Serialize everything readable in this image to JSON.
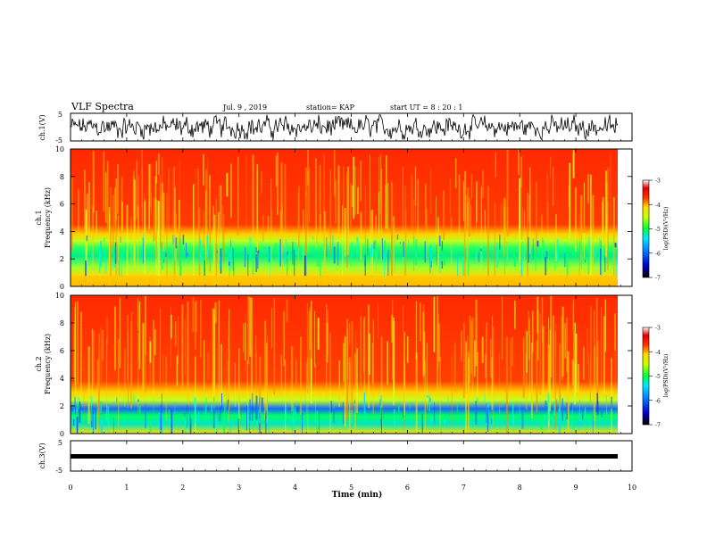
{
  "header": {
    "title": "VLF Spectra",
    "date": "Jul. 9 , 2019",
    "station": "station= KAP",
    "start": "start UT = 8 : 20 : 1"
  },
  "chart_data": [
    {
      "type": "line",
      "panel": "ch1-waveform",
      "ylabel": "ch.1(V)",
      "yticks": [
        "5",
        "-5"
      ],
      "ylim": [
        -5,
        5
      ],
      "xlim": [
        0,
        10
      ]
    },
    {
      "type": "heatmap",
      "panel": "ch1-spectrogram",
      "ylabel_line1": "ch.1",
      "ylabel_line2": "Frequency (kHz)",
      "yticks": [
        "0",
        "2",
        "4",
        "6",
        "8",
        "10"
      ],
      "ylim": [
        0,
        10
      ],
      "xlim": [
        0,
        10
      ],
      "colorbar": {
        "label": "log(PSD)(V²/Hz)",
        "ticks": [
          "-3",
          "-4",
          "-5",
          "-6",
          "-7"
        ],
        "range": [
          -7,
          -3
        ]
      }
    },
    {
      "type": "heatmap",
      "panel": "ch2-spectrogram",
      "ylabel_line1": "ch.2",
      "ylabel_line2": "Frequency (kHz)",
      "yticks": [
        "0",
        "2",
        "4",
        "6",
        "8",
        "10"
      ],
      "ylim": [
        0,
        10
      ],
      "xlim": [
        0,
        10
      ],
      "colorbar": {
        "label": "log(PSD)(V²/Hz)",
        "ticks": [
          "-3",
          "-4",
          "-5",
          "-6",
          "-7"
        ],
        "range": [
          -7,
          -3
        ]
      }
    },
    {
      "type": "line",
      "panel": "ch3-waveform",
      "ylabel": "ch.3(V)",
      "yticks": [
        "5",
        "-5"
      ],
      "ylim": [
        -5,
        5
      ],
      "xlim": [
        0,
        10
      ]
    }
  ],
  "xaxis": {
    "label": "Time (min)",
    "ticks": [
      "0",
      "1",
      "2",
      "3",
      "4",
      "5",
      "6",
      "7",
      "8",
      "9",
      "10"
    ]
  }
}
